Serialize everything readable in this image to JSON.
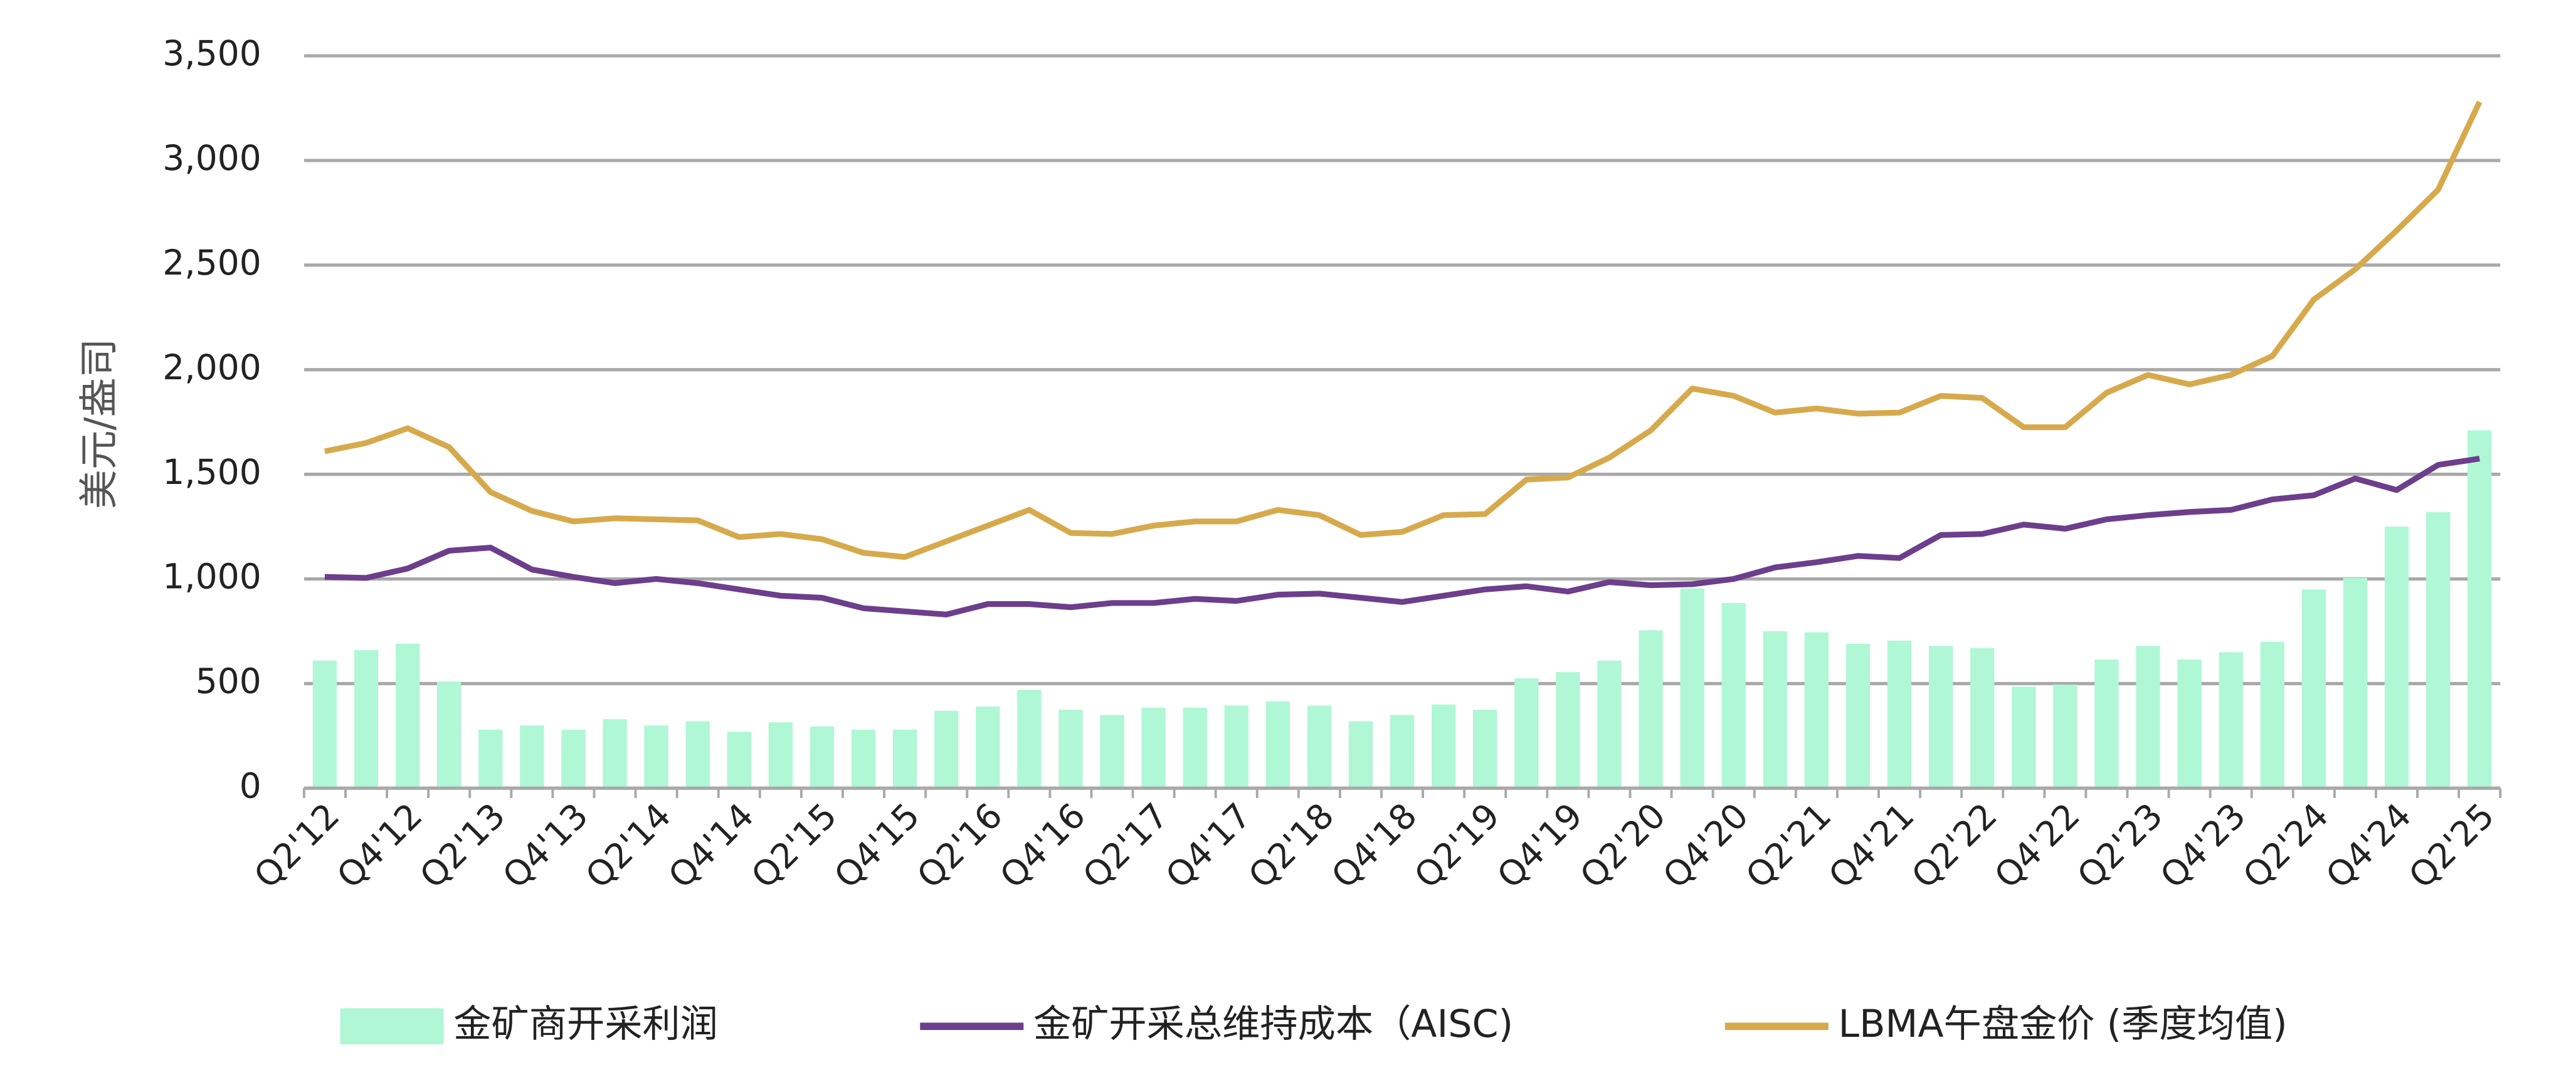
{
  "chart_data": {
    "type": "bar",
    "y_label": "美元/盎司",
    "categories": [
      "Q2'12",
      null,
      "Q4'12",
      null,
      "Q2'13",
      null,
      "Q4'13",
      null,
      "Q2'14",
      null,
      "Q4'14",
      null,
      "Q2'15",
      null,
      "Q4'15",
      null,
      "Q2'16",
      null,
      "Q4'16",
      null,
      "Q2'17",
      null,
      "Q4'17",
      null,
      "Q2'18",
      null,
      "Q4'18",
      null,
      "Q2'19",
      null,
      "Q4'19",
      null,
      "Q2'20",
      null,
      "Q4'20",
      null,
      "Q2'21",
      null,
      "Q4'21",
      null,
      "Q2'22",
      null,
      "Q4'22",
      null,
      "Q2'23",
      null,
      "Q4'23",
      null,
      "Q2'24",
      null,
      "Q4'24",
      null,
      "Q2'25"
    ],
    "series": [
      {
        "name": "金矿商开采利润",
        "type": "bar",
        "color": "#b0f7d5",
        "values": [
          610,
          660,
          690,
          510,
          280,
          300,
          280,
          330,
          300,
          320,
          270,
          315,
          295,
          280,
          280,
          370,
          390,
          470,
          375,
          350,
          385,
          385,
          395,
          415,
          395,
          320,
          350,
          400,
          375,
          525,
          555,
          610,
          755,
          955,
          885,
          750,
          745,
          690,
          705,
          680,
          670,
          485,
          495,
          615,
          680,
          615,
          650,
          700,
          950,
          1005,
          1250,
          1320,
          1710
        ]
      },
      {
        "name": "金矿开采总维持成本（AISC)",
        "type": "line",
        "color": "#6c3e8c",
        "values": [
          1010,
          1005,
          1050,
          1135,
          1150,
          1045,
          1010,
          980,
          1000,
          980,
          950,
          920,
          910,
          860,
          845,
          830,
          880,
          880,
          865,
          885,
          885,
          905,
          895,
          925,
          930,
          910,
          890,
          920,
          950,
          965,
          940,
          985,
          970,
          975,
          1000,
          1055,
          1080,
          1110,
          1100,
          1210,
          1215,
          1260,
          1240,
          1285,
          1305,
          1320,
          1330,
          1380,
          1400,
          1480,
          1425,
          1545,
          1575
        ]
      },
      {
        "name": "LBMA午盘金价 (季度均值)",
        "type": "line",
        "color": "#d6aa4c",
        "values": [
          1610,
          1650,
          1720,
          1630,
          1415,
          1325,
          1275,
          1290,
          1285,
          1280,
          1200,
          1215,
          1190,
          1125,
          1105,
          1180,
          1255,
          1330,
          1220,
          1215,
          1255,
          1275,
          1275,
          1330,
          1305,
          1210,
          1225,
          1305,
          1310,
          1475,
          1485,
          1580,
          1710,
          1910,
          1875,
          1795,
          1815,
          1790,
          1795,
          1875,
          1865,
          1725,
          1725,
          1890,
          1975,
          1930,
          1975,
          2065,
          2335,
          2480,
          2665,
          2860,
          3280
        ]
      }
    ],
    "ylim": [
      0,
      3500
    ],
    "yticks": [
      0,
      500,
      {
        "value": 1000,
        "label": "1,000"
      },
      {
        "value": 1500,
        "label": "1,500"
      },
      {
        "value": 2000,
        "label": "2,000"
      },
      {
        "value": 2500,
        "label": "2,500"
      },
      {
        "value": 3000,
        "label": "3,000"
      },
      {
        "value": 3500,
        "label": "3,500"
      }
    ],
    "grid": true,
    "legend": "bottom"
  }
}
